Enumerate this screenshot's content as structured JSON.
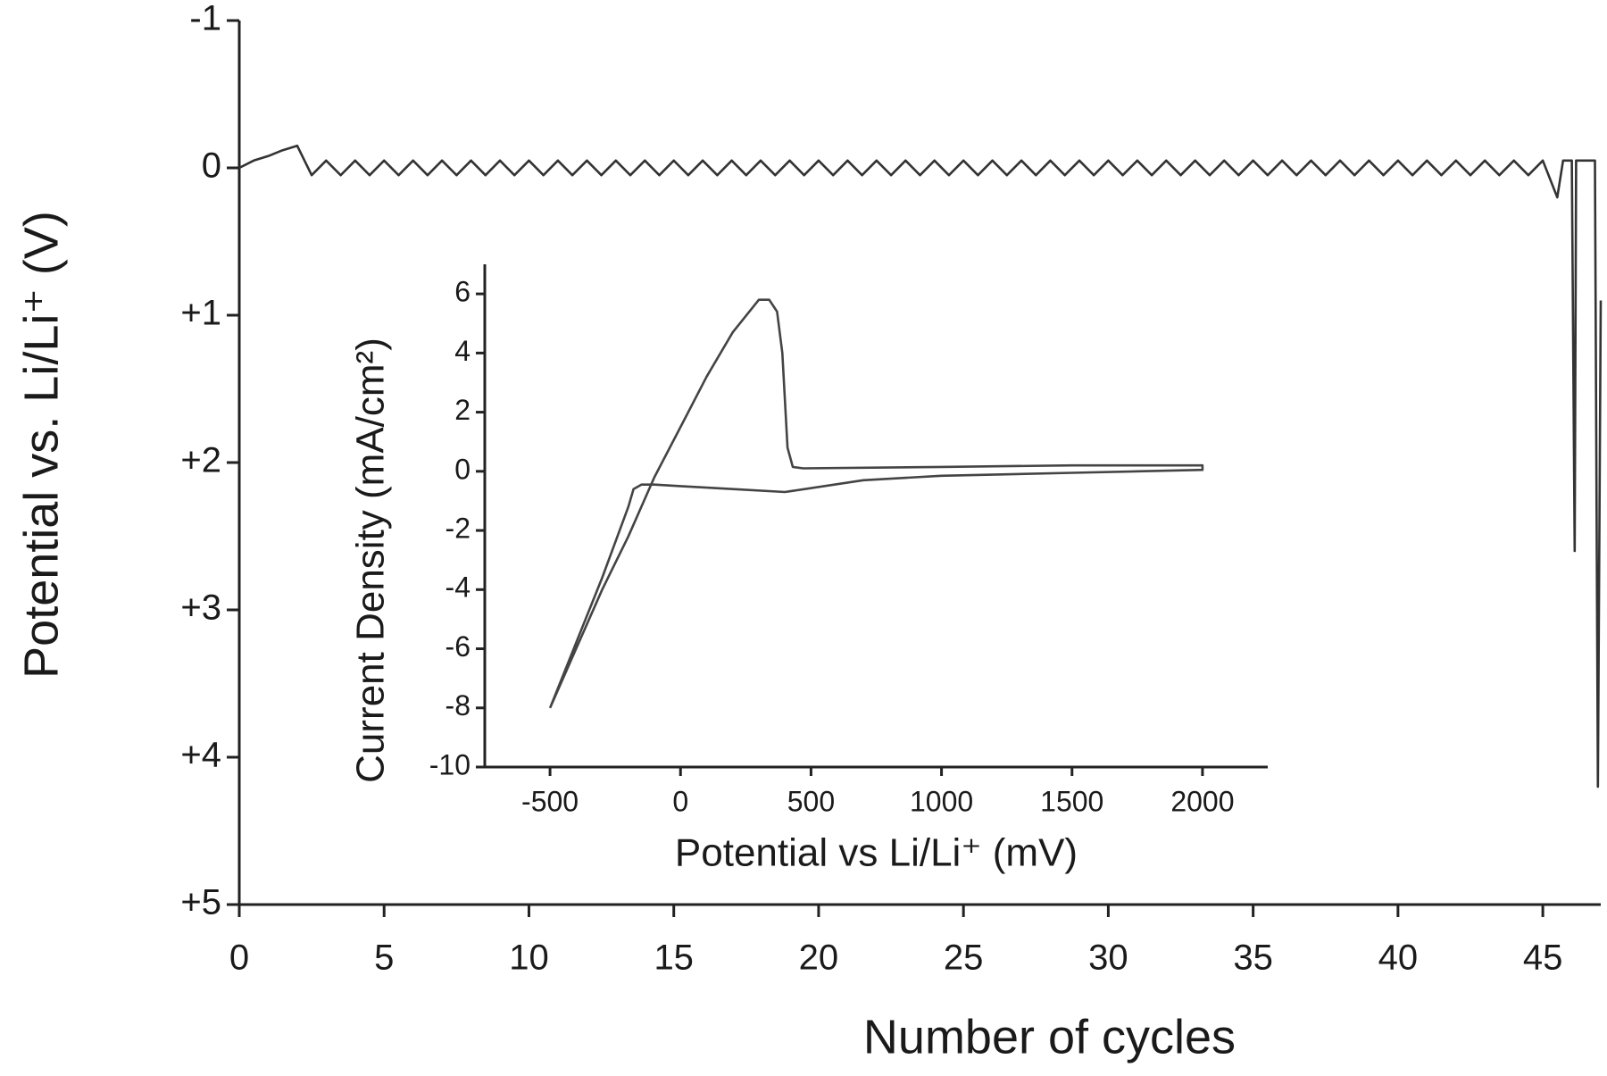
{
  "chart_data": [
    {
      "type": "line",
      "x_label": "Number of cycles",
      "y_label": "Potential vs. Li/Li⁺ (V)",
      "color": "#333333",
      "xlim": [
        0,
        47
      ],
      "xticks": [
        0,
        5,
        10,
        15,
        20,
        25,
        30,
        35,
        40,
        45
      ],
      "ylim": [
        5,
        -1
      ],
      "yticks": [
        -1,
        0,
        {
          "value": 1,
          "label": "+1"
        },
        {
          "value": 2,
          "label": "+2"
        },
        {
          "value": 3,
          "label": "+3"
        },
        {
          "value": 4,
          "label": "+4"
        },
        {
          "value": 5,
          "label": "+5"
        }
      ],
      "x": [
        0,
        0.5,
        1,
        1.5,
        2,
        2.5,
        3,
        3.5,
        4,
        4.5,
        5,
        5.5,
        6,
        6.5,
        7,
        7.5,
        8,
        8.5,
        9,
        9.5,
        10,
        10.5,
        11,
        11.5,
        12,
        12.5,
        13,
        13.5,
        14,
        14.5,
        15,
        15.5,
        16,
        16.5,
        17,
        17.5,
        18,
        18.5,
        19,
        19.5,
        20,
        20.5,
        21,
        21.5,
        22,
        22.5,
        23,
        23.5,
        24,
        24.5,
        25,
        25.5,
        26,
        26.5,
        27,
        27.5,
        28,
        28.5,
        29,
        29.5,
        30,
        30.5,
        31,
        31.5,
        32,
        32.5,
        33,
        33.5,
        34,
        34.5,
        35,
        35.5,
        36,
        36.5,
        37,
        37.5,
        38,
        38.5,
        39,
        39.5,
        40,
        40.5,
        41,
        41.5,
        42,
        42.5,
        43,
        43.5,
        44,
        44.5,
        45,
        45.5,
        45.7,
        46,
        46.1,
        46.15,
        46.8,
        46.9,
        47
      ],
      "values": [
        0,
        -0.05,
        -0.08,
        -0.12,
        -0.15,
        0.05,
        -0.05,
        0.05,
        -0.05,
        0.05,
        -0.05,
        0.05,
        -0.05,
        0.05,
        -0.05,
        0.05,
        -0.05,
        0.05,
        -0.05,
        0.05,
        -0.05,
        0.05,
        -0.05,
        0.05,
        -0.05,
        0.05,
        -0.05,
        0.05,
        -0.05,
        0.05,
        -0.05,
        0.05,
        -0.05,
        0.05,
        -0.05,
        0.05,
        -0.05,
        0.05,
        -0.05,
        0.05,
        -0.05,
        0.05,
        -0.05,
        0.05,
        -0.05,
        0.05,
        -0.05,
        0.05,
        -0.05,
        0.05,
        -0.05,
        0.05,
        -0.05,
        0.05,
        -0.05,
        0.05,
        -0.05,
        0.05,
        -0.05,
        0.05,
        -0.05,
        0.05,
        -0.05,
        0.05,
        -0.05,
        0.05,
        -0.05,
        0.05,
        -0.05,
        0.05,
        -0.05,
        0.05,
        -0.05,
        0.05,
        -0.05,
        0.05,
        -0.05,
        0.05,
        -0.05,
        0.05,
        -0.05,
        0.05,
        -0.05,
        0.05,
        -0.05,
        0.05,
        -0.05,
        0.05,
        -0.05,
        0.05,
        -0.05,
        0.2,
        -0.05,
        -0.05,
        2.6,
        -0.05,
        -0.05,
        4.2,
        0.9
      ]
    },
    {
      "type": "line",
      "x_label": "Potential vs Li/Li⁺ (mV)",
      "y_label": "Current Density (mA/cm²)",
      "color": "#444444",
      "xlim": [
        -750,
        2250
      ],
      "xticks": [
        -500,
        0,
        500,
        1000,
        1500,
        2000
      ],
      "ylim": [
        -10,
        7
      ],
      "yticks": [
        -10,
        -8,
        -6,
        -4,
        -2,
        0,
        2,
        4,
        6
      ],
      "x": [
        -500,
        -400,
        -300,
        -200,
        -100,
        0,
        100,
        200,
        300,
        340,
        370,
        390,
        410,
        430,
        470,
        1000,
        1500,
        2000,
        2000,
        1500,
        1000,
        700,
        400,
        200,
        0,
        -100,
        -150,
        -180,
        -200,
        -300,
        -400,
        -500
      ],
      "values": [
        -8,
        -6,
        -4,
        -2.2,
        -0.2,
        1.5,
        3.2,
        4.7,
        5.8,
        5.8,
        5.4,
        4,
        0.8,
        0.15,
        0.1,
        0.15,
        0.2,
        0.2,
        0.05,
        -0.05,
        -0.15,
        -0.3,
        -0.7,
        -0.6,
        -0.5,
        -0.45,
        -0.45,
        -0.6,
        -1.2,
        -3.6,
        -5.8,
        -8
      ]
    }
  ]
}
